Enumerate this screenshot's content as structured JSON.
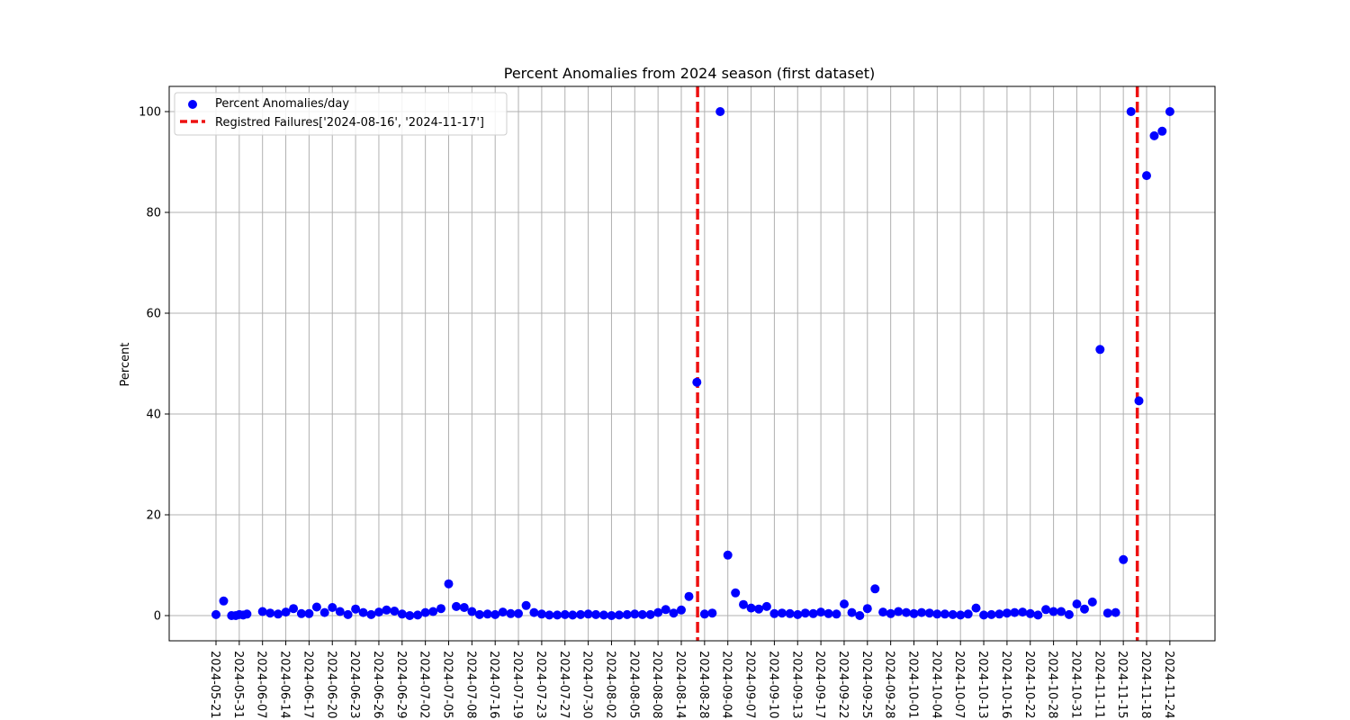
{
  "chart_data": {
    "type": "scatter",
    "title": "Percent Anomalies from 2024 season (first dataset)",
    "xlabel": "",
    "ylabel": "Percent",
    "ylim": [
      -5,
      105
    ],
    "yticks": [
      0,
      20,
      40,
      60,
      80,
      100
    ],
    "grid": true,
    "legend_position": "top-left",
    "categories": [
      "2024-05-21",
      "2024-05-31",
      "2024-06-07",
      "2024-06-14",
      "2024-06-17",
      "2024-06-20",
      "2024-06-23",
      "2024-06-26",
      "2024-06-29",
      "2024-07-02",
      "2024-07-05",
      "2024-07-08",
      "2024-07-16",
      "2024-07-19",
      "2024-07-23",
      "2024-07-27",
      "2024-07-30",
      "2024-08-02",
      "2024-08-05",
      "2024-08-08",
      "2024-08-14",
      "2024-08-28",
      "2024-09-04",
      "2024-09-07",
      "2024-09-10",
      "2024-09-13",
      "2024-09-17",
      "2024-09-22",
      "2024-09-25",
      "2024-09-28",
      "2024-10-01",
      "2024-10-04",
      "2024-10-07",
      "2024-10-13",
      "2024-10-16",
      "2024-10-22",
      "2024-10-28",
      "2024-10-31",
      "2024-11-11",
      "2024-11-15",
      "2024-11-18",
      "2024-11-24"
    ],
    "series": [
      {
        "name": "Percent Anomalies/day",
        "color": "#0000ff",
        "points": [
          [
            0,
            0.2
          ],
          [
            0.33,
            2.9
          ],
          [
            0.67,
            0
          ],
          [
            0.85,
            0
          ],
          [
            1,
            0.2
          ],
          [
            1.17,
            0.1
          ],
          [
            1.33,
            0.3
          ],
          [
            2,
            0.8
          ],
          [
            2.33,
            0.5
          ],
          [
            2.67,
            0.3
          ],
          [
            3,
            0.7
          ],
          [
            3.33,
            1.4
          ],
          [
            3.67,
            0.4
          ],
          [
            4,
            0.4
          ],
          [
            4.33,
            1.7
          ],
          [
            4.67,
            0.6
          ],
          [
            5,
            1.6
          ],
          [
            5.33,
            0.8
          ],
          [
            5.67,
            0.2
          ],
          [
            6,
            1.3
          ],
          [
            6.33,
            0.6
          ],
          [
            6.67,
            0.2
          ],
          [
            7,
            0.7
          ],
          [
            7.33,
            1.1
          ],
          [
            7.67,
            0.9
          ],
          [
            8,
            0.3
          ],
          [
            8.33,
            0
          ],
          [
            8.67,
            0.1
          ],
          [
            9,
            0.6
          ],
          [
            9.33,
            0.8
          ],
          [
            9.67,
            1.4
          ],
          [
            10,
            6.3
          ],
          [
            10.33,
            1.8
          ],
          [
            10.67,
            1.6
          ],
          [
            11,
            0.8
          ],
          [
            11.33,
            0.2
          ],
          [
            11.67,
            0.3
          ],
          [
            12,
            0.2
          ],
          [
            12.33,
            0.7
          ],
          [
            12.67,
            0.4
          ],
          [
            13,
            0.4
          ],
          [
            13.33,
            2
          ],
          [
            13.67,
            0.6
          ],
          [
            14,
            0.3
          ],
          [
            14.33,
            0.1
          ],
          [
            14.67,
            0.1
          ],
          [
            15,
            0.2
          ],
          [
            15.33,
            0.1
          ],
          [
            15.67,
            0.2
          ],
          [
            16,
            0.3
          ],
          [
            16.33,
            0.2
          ],
          [
            16.67,
            0.1
          ],
          [
            17,
            0
          ],
          [
            17.33,
            0.1
          ],
          [
            17.67,
            0.2
          ],
          [
            18,
            0.3
          ],
          [
            18.33,
            0.2
          ],
          [
            18.67,
            0.2
          ],
          [
            19,
            0.6
          ],
          [
            19.33,
            1.2
          ],
          [
            19.67,
            0.5
          ],
          [
            20,
            1.1
          ],
          [
            20.33,
            3.8
          ],
          [
            20.67,
            46.3
          ],
          [
            21,
            0.3
          ],
          [
            21.33,
            0.5
          ],
          [
            21.67,
            100
          ],
          [
            22,
            12
          ],
          [
            22.33,
            4.5
          ],
          [
            22.67,
            2.2
          ],
          [
            23,
            1.5
          ],
          [
            23.33,
            1.3
          ],
          [
            23.67,
            1.8
          ],
          [
            24,
            0.4
          ],
          [
            24.33,
            0.5
          ],
          [
            24.67,
            0.4
          ],
          [
            25,
            0.2
          ],
          [
            25.33,
            0.5
          ],
          [
            25.67,
            0.4
          ],
          [
            26,
            0.7
          ],
          [
            26.33,
            0.4
          ],
          [
            26.67,
            0.3
          ],
          [
            27,
            2.3
          ],
          [
            27.33,
            0.6
          ],
          [
            27.67,
            0
          ],
          [
            28,
            1.4
          ],
          [
            28.33,
            5.3
          ],
          [
            28.67,
            0.7
          ],
          [
            29,
            0.4
          ],
          [
            29.33,
            0.8
          ],
          [
            29.67,
            0.6
          ],
          [
            30,
            0.4
          ],
          [
            30.33,
            0.6
          ],
          [
            30.67,
            0.5
          ],
          [
            31,
            0.3
          ],
          [
            31.33,
            0.3
          ],
          [
            31.67,
            0.2
          ],
          [
            32,
            0.1
          ],
          [
            32.33,
            0.3
          ],
          [
            32.67,
            1.5
          ],
          [
            33,
            0.1
          ],
          [
            33.33,
            0.2
          ],
          [
            33.67,
            0.3
          ],
          [
            34,
            0.5
          ],
          [
            34.33,
            0.6
          ],
          [
            34.67,
            0.7
          ],
          [
            35,
            0.4
          ],
          [
            35.33,
            0.1
          ],
          [
            35.67,
            1.2
          ],
          [
            36,
            0.8
          ],
          [
            36.33,
            0.8
          ],
          [
            36.67,
            0.2
          ],
          [
            37,
            2.3
          ],
          [
            37.33,
            1.3
          ],
          [
            37.67,
            2.7
          ],
          [
            38,
            52.8
          ],
          [
            38.33,
            0.5
          ],
          [
            38.67,
            0.6
          ],
          [
            39,
            11.1
          ],
          [
            39.33,
            100
          ],
          [
            39.67,
            42.6
          ],
          [
            40,
            87.3
          ],
          [
            40.33,
            95.2
          ],
          [
            40.67,
            96.1
          ],
          [
            41,
            100
          ]
        ]
      },
      {
        "name": "Registred Failures['2024-08-16', '2024-11-17']",
        "color": "#ee1111",
        "style": "dashed",
        "x_positions": [
          20.7,
          39.6
        ]
      }
    ]
  }
}
